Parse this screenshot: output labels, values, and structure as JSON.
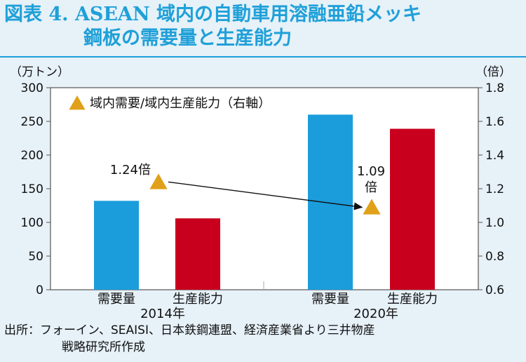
{
  "header": {
    "title_line1": "図表 4. ASEAN 域内の自動車用溶融亜鉛メッキ",
    "title_line2": "鋼板の需要量と生産能力"
  },
  "source": {
    "line1": "出所：フォーイン、SEAISI、日本鉄鋼連盟、経済産業省より三井物産",
    "line2": "戦略研究所作成"
  },
  "chart_data": {
    "type": "bar",
    "title": "ASEAN 域内の自動車用溶融亜鉛メッキ鋼板の需要量と生産能力",
    "y_unit": "（万トン）",
    "y2_unit": "（倍）",
    "ylim": [
      0,
      300
    ],
    "y_ticks": [
      "0",
      "50",
      "100",
      "150",
      "200",
      "250",
      "300"
    ],
    "y2lim": [
      0.6,
      1.8
    ],
    "y2_ticks": [
      "0.6",
      "0.8",
      "1.0",
      "1.2",
      "1.4",
      "1.6",
      "1.8"
    ],
    "groups": [
      {
        "year": "2014年",
        "bars": [
          {
            "label": "需要量",
            "value": 132,
            "color": "#1b9ddb"
          },
          {
            "label": "生産能力",
            "value": 106,
            "color": "#c8001e"
          }
        ],
        "ratio": 1.24,
        "ratio_label": "1.24倍"
      },
      {
        "year": "2020年",
        "bars": [
          {
            "label": "需要量",
            "value": 260,
            "color": "#1b9ddb"
          },
          {
            "label": "生産能力",
            "value": 239,
            "color": "#c8001e"
          }
        ],
        "ratio": 1.09,
        "ratio_label_line1": "1.09",
        "ratio_label_line2": "倍"
      }
    ],
    "legend": {
      "label": "域内需要/域内生産能力（右軸）",
      "marker_color": "#e0a019",
      "placement": "top-left"
    },
    "grid": false
  }
}
